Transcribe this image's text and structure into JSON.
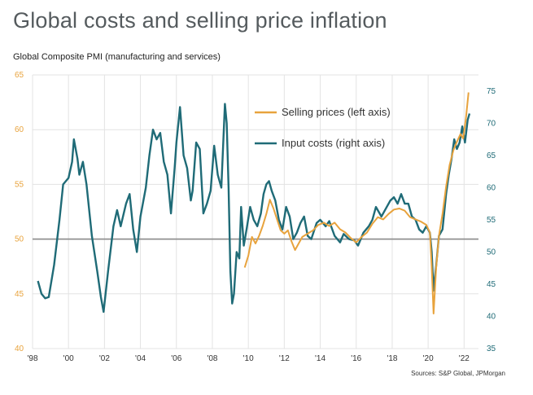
{
  "title": "Global costs and selling price inflation",
  "subtitle": "Global Composite PMI (manufacturing and services)",
  "source": "Sources: S&P Global, JPMorgan",
  "colors": {
    "selling": "#e8a33d",
    "input": "#1f6b77",
    "grid": "#e3e3e3",
    "fifty_line": "#8a8a8a"
  },
  "chart_data": {
    "type": "line",
    "title": "Global costs and selling price inflation",
    "ylabel": "Global Composite PMI (manufacturing and services)",
    "x_range": [
      1998,
      2022.8
    ],
    "x_ticks": [
      {
        "value": 1998,
        "label": "'98"
      },
      {
        "value": 2000,
        "label": "'00"
      },
      {
        "value": 2002,
        "label": "'02"
      },
      {
        "value": 2004,
        "label": "'04"
      },
      {
        "value": 2006,
        "label": "'06"
      },
      {
        "value": 2008,
        "label": "'08"
      },
      {
        "value": 2010,
        "label": "'10"
      },
      {
        "value": 2012,
        "label": "'12"
      },
      {
        "value": 2014,
        "label": "'14"
      },
      {
        "value": 2016,
        "label": "'16"
      },
      {
        "value": 2018,
        "label": "'18"
      },
      {
        "value": 2020,
        "label": "'20"
      },
      {
        "value": 2022,
        "label": "'22"
      }
    ],
    "y_left": {
      "range": [
        40,
        65
      ],
      "ticks": [
        40,
        45,
        50,
        55,
        60,
        65
      ],
      "label": "left axis"
    },
    "y_right": {
      "range": [
        35,
        77.5
      ],
      "ticks": [
        35,
        40,
        45,
        50,
        55,
        60,
        65,
        70,
        75
      ],
      "label": "right axis"
    },
    "reference_line": {
      "axis": "left",
      "value": 50
    },
    "grid": true,
    "legend_position": "top-right",
    "series": [
      {
        "name": "Selling prices (left axis)",
        "axis": "left",
        "points": [
          [
            2009.8,
            47.4
          ],
          [
            2010.0,
            48.5
          ],
          [
            2010.2,
            50.2
          ],
          [
            2010.4,
            49.6
          ],
          [
            2010.6,
            50.3
          ],
          [
            2010.8,
            51.2
          ],
          [
            2011.0,
            52.3
          ],
          [
            2011.2,
            53.6
          ],
          [
            2011.4,
            52.8
          ],
          [
            2011.6,
            51.8
          ],
          [
            2011.8,
            50.8
          ],
          [
            2012.0,
            50.5
          ],
          [
            2012.2,
            50.8
          ],
          [
            2012.4,
            49.8
          ],
          [
            2012.6,
            49.0
          ],
          [
            2012.8,
            49.6
          ],
          [
            2013.0,
            50.2
          ],
          [
            2013.3,
            50.5
          ],
          [
            2013.6,
            50.8
          ],
          [
            2013.9,
            51.3
          ],
          [
            2014.2,
            51.5
          ],
          [
            2014.5,
            51.2
          ],
          [
            2014.8,
            51.5
          ],
          [
            2015.1,
            50.9
          ],
          [
            2015.4,
            50.6
          ],
          [
            2015.7,
            50.1
          ],
          [
            2016.0,
            49.7
          ],
          [
            2016.3,
            50.2
          ],
          [
            2016.6,
            50.6
          ],
          [
            2016.9,
            51.4
          ],
          [
            2017.2,
            52.0
          ],
          [
            2017.5,
            51.8
          ],
          [
            2017.8,
            52.3
          ],
          [
            2018.1,
            52.7
          ],
          [
            2018.4,
            52.8
          ],
          [
            2018.7,
            52.6
          ],
          [
            2019.0,
            52.0
          ],
          [
            2019.3,
            51.8
          ],
          [
            2019.6,
            51.6
          ],
          [
            2019.9,
            51.3
          ],
          [
            2020.1,
            50.6
          ],
          [
            2020.2,
            47.5
          ],
          [
            2020.3,
            43.2
          ],
          [
            2020.45,
            47.5
          ],
          [
            2020.6,
            50.3
          ],
          [
            2020.8,
            52.3
          ],
          [
            2021.0,
            54.8
          ],
          [
            2021.2,
            56.8
          ],
          [
            2021.4,
            58.1
          ],
          [
            2021.6,
            58.9
          ],
          [
            2021.8,
            59.6
          ],
          [
            2021.95,
            59.2
          ],
          [
            2022.1,
            61.0
          ],
          [
            2022.25,
            63.4
          ]
        ]
      },
      {
        "name": "Input costs (right axis)",
        "axis": "right",
        "points": [
          [
            1998.3,
            45.5
          ],
          [
            1998.5,
            43.5
          ],
          [
            1998.7,
            42.8
          ],
          [
            1998.9,
            43.0
          ],
          [
            1999.2,
            48.0
          ],
          [
            1999.5,
            55.0
          ],
          [
            1999.7,
            60.5
          ],
          [
            2000.0,
            61.5
          ],
          [
            2000.2,
            64.0
          ],
          [
            2000.3,
            67.5
          ],
          [
            2000.5,
            64.5
          ],
          [
            2000.6,
            62.0
          ],
          [
            2000.8,
            64.0
          ],
          [
            2001.0,
            60.5
          ],
          [
            2001.3,
            52.5
          ],
          [
            2001.6,
            47.0
          ],
          [
            2001.8,
            43.0
          ],
          [
            2001.95,
            40.7
          ],
          [
            2002.2,
            47.0
          ],
          [
            2002.5,
            54.0
          ],
          [
            2002.7,
            56.5
          ],
          [
            2002.9,
            54.0
          ],
          [
            2003.2,
            57.5
          ],
          [
            2003.4,
            59.0
          ],
          [
            2003.6,
            53.5
          ],
          [
            2003.8,
            50.0
          ],
          [
            2004.0,
            55.5
          ],
          [
            2004.3,
            60.0
          ],
          [
            2004.5,
            65.0
          ],
          [
            2004.7,
            69.0
          ],
          [
            2004.9,
            67.5
          ],
          [
            2005.1,
            68.5
          ],
          [
            2005.3,
            64.0
          ],
          [
            2005.5,
            62.0
          ],
          [
            2005.7,
            56.0
          ],
          [
            2005.9,
            63.0
          ],
          [
            2006.0,
            67.0
          ],
          [
            2006.2,
            72.5
          ],
          [
            2006.4,
            65.0
          ],
          [
            2006.6,
            63.0
          ],
          [
            2006.8,
            58.0
          ],
          [
            2006.9,
            59.5
          ],
          [
            2007.1,
            67.0
          ],
          [
            2007.3,
            66.0
          ],
          [
            2007.5,
            56.0
          ],
          [
            2007.7,
            57.5
          ],
          [
            2007.9,
            59.5
          ],
          [
            2008.1,
            66.5
          ],
          [
            2008.3,
            62.0
          ],
          [
            2008.5,
            60.0
          ],
          [
            2008.7,
            73.0
          ],
          [
            2008.8,
            70.0
          ],
          [
            2008.9,
            60.0
          ],
          [
            2009.0,
            47.0
          ],
          [
            2009.1,
            42.0
          ],
          [
            2009.2,
            43.5
          ],
          [
            2009.35,
            50.0
          ],
          [
            2009.5,
            49.0
          ],
          [
            2009.6,
            57.0
          ],
          [
            2009.75,
            51.0
          ],
          [
            2009.9,
            53.5
          ],
          [
            2010.1,
            57.0
          ],
          [
            2010.3,
            55.0
          ],
          [
            2010.5,
            54.0
          ],
          [
            2010.7,
            56.0
          ],
          [
            2010.85,
            59.0
          ],
          [
            2011.0,
            60.5
          ],
          [
            2011.15,
            61.0
          ],
          [
            2011.3,
            59.5
          ],
          [
            2011.5,
            58.0
          ],
          [
            2011.7,
            55.0
          ],
          [
            2011.9,
            53.5
          ],
          [
            2012.1,
            57.0
          ],
          [
            2012.3,
            55.5
          ],
          [
            2012.5,
            52.0
          ],
          [
            2012.7,
            53.0
          ],
          [
            2012.9,
            54.5
          ],
          [
            2013.1,
            55.5
          ],
          [
            2013.3,
            52.5
          ],
          [
            2013.5,
            52.0
          ],
          [
            2013.8,
            54.5
          ],
          [
            2014.0,
            55.0
          ],
          [
            2014.3,
            54.0
          ],
          [
            2014.5,
            54.8
          ],
          [
            2014.8,
            52.5
          ],
          [
            2015.1,
            51.5
          ],
          [
            2015.3,
            52.8
          ],
          [
            2015.6,
            52.0
          ],
          [
            2015.9,
            51.8
          ],
          [
            2016.1,
            51.0
          ],
          [
            2016.4,
            53.0
          ],
          [
            2016.7,
            54.0
          ],
          [
            2016.9,
            55.0
          ],
          [
            2017.1,
            57.0
          ],
          [
            2017.4,
            55.5
          ],
          [
            2017.7,
            57.0
          ],
          [
            2017.9,
            58.0
          ],
          [
            2018.1,
            58.5
          ],
          [
            2018.3,
            57.5
          ],
          [
            2018.5,
            59.0
          ],
          [
            2018.7,
            57.5
          ],
          [
            2018.9,
            57.5
          ],
          [
            2019.1,
            55.5
          ],
          [
            2019.3,
            55.0
          ],
          [
            2019.5,
            53.5
          ],
          [
            2019.7,
            53.0
          ],
          [
            2019.9,
            54.0
          ],
          [
            2020.1,
            53.0
          ],
          [
            2020.2,
            50.0
          ],
          [
            2020.3,
            44.0
          ],
          [
            2020.45,
            48.0
          ],
          [
            2020.6,
            52.5
          ],
          [
            2020.8,
            53.5
          ],
          [
            2021.0,
            59.0
          ],
          [
            2021.15,
            62.0
          ],
          [
            2021.3,
            64.5
          ],
          [
            2021.45,
            67.5
          ],
          [
            2021.6,
            66.0
          ],
          [
            2021.75,
            67.0
          ],
          [
            2021.9,
            69.5
          ],
          [
            2022.05,
            67.0
          ],
          [
            2022.2,
            70.5
          ],
          [
            2022.3,
            71.5
          ]
        ]
      }
    ]
  }
}
